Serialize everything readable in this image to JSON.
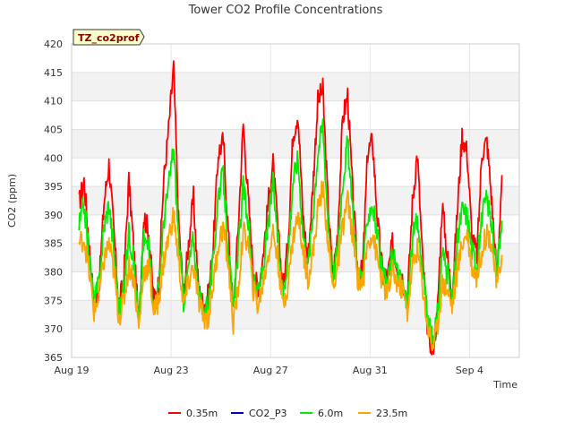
{
  "chart_data": {
    "type": "line",
    "title": "Tower CO2 Profile Concentrations",
    "xlabel": "Time",
    "ylabel": "CO2 (ppm)",
    "badge": "TZ_co2prof",
    "ylim": [
      365,
      420
    ],
    "yticks": [
      365,
      370,
      375,
      380,
      385,
      390,
      395,
      400,
      405,
      410,
      415,
      420
    ],
    "xlim": [
      0,
      18
    ],
    "xticks": [
      {
        "day": 0,
        "label": "Aug 19"
      },
      {
        "day": 4,
        "label": "Aug 23"
      },
      {
        "day": 8,
        "label": "Aug 27"
      },
      {
        "day": 12,
        "label": "Aug 31"
      },
      {
        "day": 16,
        "label": "Sep 4"
      }
    ],
    "grid": true,
    "legend_position": "bottom",
    "colors": {
      "0.35m": "#ff0000",
      "CO2_P3": "#0000cc",
      "6.0m": "#00ee00",
      "23.5m": "#ffa500"
    },
    "series": [
      {
        "name": "0.35m",
        "color": "#ff0000",
        "x": [
          0.3,
          0.5,
          0.7,
          0.9,
          1.1,
          1.3,
          1.5,
          1.7,
          1.9,
          2.1,
          2.3,
          2.5,
          2.7,
          2.9,
          3.1,
          3.3,
          3.5,
          3.7,
          3.9,
          4.1,
          4.3,
          4.5,
          4.7,
          4.9,
          5.1,
          5.3,
          5.5,
          5.7,
          5.9,
          6.1,
          6.3,
          6.5,
          6.7,
          6.9,
          7.1,
          7.3,
          7.5,
          7.7,
          7.9,
          8.1,
          8.3,
          8.5,
          8.7,
          8.9,
          9.1,
          9.3,
          9.5,
          9.7,
          9.9,
          10.1,
          10.3,
          10.5,
          10.7,
          10.9,
          11.1,
          11.3,
          11.5,
          11.7,
          11.9,
          12.1,
          12.3,
          12.5,
          12.7,
          12.9,
          13.1,
          13.3,
          13.5,
          13.7,
          13.9,
          14.1,
          14.3,
          14.5,
          14.7,
          14.9,
          15.1,
          15.3,
          15.5,
          15.7,
          15.9,
          16.1,
          16.3,
          16.5,
          16.7,
          16.9,
          17.1,
          17.3
        ],
        "values": [
          392,
          396,
          385,
          374,
          377,
          392,
          399,
          387,
          374,
          379,
          396,
          384,
          371,
          390,
          387,
          375,
          378,
          396,
          405,
          416,
          389,
          376,
          385,
          393,
          377,
          374,
          376,
          385,
          401,
          403,
          387,
          373,
          388,
          406,
          393,
          380,
          377,
          383,
          392,
          399,
          387,
          377,
          385,
          404,
          408,
          390,
          382,
          395,
          410,
          412,
          393,
          379,
          387,
          407,
          411,
          394,
          380,
          380,
          401,
          403,
          389,
          380,
          379,
          385,
          381,
          379,
          375,
          392,
          401,
          383,
          371,
          366,
          372,
          392,
          383,
          376,
          390,
          404,
          401,
          386,
          383,
          401,
          403,
          392,
          379,
          397
        ],
        "width": 1.8
      },
      {
        "name": "CO2_P3",
        "color": "#0000cc",
        "x": [],
        "values": [],
        "width": 1.4
      },
      {
        "name": "6.0m",
        "color": "#00ee00",
        "x": [
          0.3,
          0.5,
          0.7,
          0.9,
          1.1,
          1.3,
          1.5,
          1.7,
          1.9,
          2.1,
          2.3,
          2.5,
          2.7,
          2.9,
          3.1,
          3.3,
          3.5,
          3.7,
          3.9,
          4.1,
          4.3,
          4.5,
          4.7,
          4.9,
          5.1,
          5.3,
          5.5,
          5.7,
          5.9,
          6.1,
          6.3,
          6.5,
          6.7,
          6.9,
          7.1,
          7.3,
          7.5,
          7.7,
          7.9,
          8.1,
          8.3,
          8.5,
          8.7,
          8.9,
          9.1,
          9.3,
          9.5,
          9.7,
          9.9,
          10.1,
          10.3,
          10.5,
          10.7,
          10.9,
          11.1,
          11.3,
          11.5,
          11.7,
          11.9,
          12.1,
          12.3,
          12.5,
          12.7,
          12.9,
          13.1,
          13.3,
          13.5,
          13.7,
          13.9,
          14.1,
          14.3,
          14.5,
          14.7,
          14.9,
          15.1,
          15.3,
          15.5,
          15.7,
          15.9,
          16.1,
          16.3,
          16.5,
          16.7,
          16.9,
          17.1,
          17.3
        ],
        "values": [
          388,
          392,
          383,
          375,
          378,
          388,
          392,
          384,
          373,
          377,
          387,
          382,
          371,
          386,
          384,
          374,
          377,
          389,
          395,
          402,
          386,
          375,
          381,
          386,
          376,
          373,
          375,
          382,
          394,
          397,
          384,
          373,
          384,
          395,
          389,
          378,
          376,
          381,
          388,
          396,
          385,
          376,
          383,
          396,
          400,
          387,
          381,
          390,
          401,
          406,
          390,
          378,
          385,
          396,
          403,
          390,
          380,
          379,
          390,
          392,
          386,
          379,
          378,
          383,
          380,
          378,
          374,
          386,
          389,
          381,
          372,
          368,
          371,
          384,
          380,
          375,
          385,
          391,
          390,
          384,
          381,
          390,
          393,
          388,
          379,
          389
        ],
        "width": 1.8
      },
      {
        "name": "23.5m",
        "color": "#ffa500",
        "x": [
          0.3,
          0.5,
          0.7,
          0.9,
          1.1,
          1.3,
          1.5,
          1.7,
          1.9,
          2.1,
          2.3,
          2.5,
          2.7,
          2.9,
          3.1,
          3.3,
          3.5,
          3.7,
          3.9,
          4.1,
          4.3,
          4.5,
          4.7,
          4.9,
          5.1,
          5.3,
          5.5,
          5.7,
          5.9,
          6.1,
          6.3,
          6.5,
          6.7,
          6.9,
          7.1,
          7.3,
          7.5,
          7.7,
          7.9,
          8.1,
          8.3,
          8.5,
          8.7,
          8.9,
          9.1,
          9.3,
          9.5,
          9.7,
          9.9,
          10.1,
          10.3,
          10.5,
          10.7,
          10.9,
          11.1,
          11.3,
          11.5,
          11.7,
          11.9,
          12.1,
          12.3,
          12.5,
          12.7,
          12.9,
          13.1,
          13.3,
          13.5,
          13.7,
          13.9,
          14.1,
          14.3,
          14.5,
          14.7,
          14.9,
          15.1,
          15.3,
          15.5,
          15.7,
          15.9,
          16.1,
          16.3,
          16.5,
          16.7,
          16.9,
          17.1,
          17.3
        ],
        "values": [
          385,
          386,
          380,
          373,
          376,
          382,
          385,
          380,
          372,
          375,
          381,
          379,
          370,
          380,
          381,
          373,
          375,
          382,
          386,
          390,
          382,
          374,
          378,
          381,
          375,
          372,
          372,
          378,
          385,
          388,
          381,
          371,
          377,
          387,
          385,
          377,
          374,
          378,
          383,
          387,
          382,
          374,
          378,
          386,
          390,
          384,
          379,
          383,
          391,
          395,
          386,
          377,
          381,
          388,
          393,
          386,
          379,
          378,
          385,
          387,
          382,
          378,
          376,
          380,
          378,
          377,
          373,
          381,
          384,
          378,
          371,
          367,
          370,
          378,
          377,
          374,
          380,
          385,
          387,
          381,
          379,
          384,
          387,
          385,
          377,
          383
        ],
        "width": 1.8
      }
    ]
  }
}
